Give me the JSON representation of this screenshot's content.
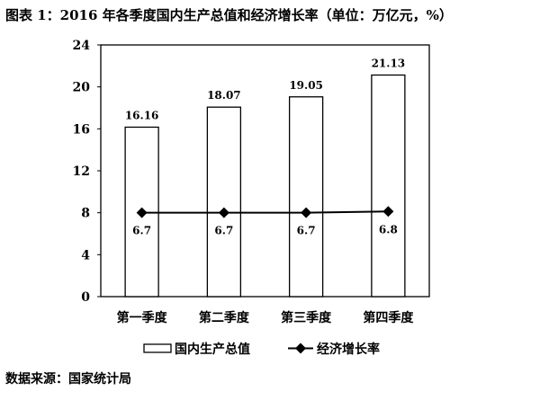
{
  "title": "图表 1：2016 年各季度国内生产总值和经济增长率（单位：万亿元，%）",
  "source": "数据来源：国家统计局",
  "chart_data": {
    "type": "bar",
    "categories": [
      "第一季度",
      "第二季度",
      "第三季度",
      "第四季度"
    ],
    "series": [
      {
        "name": "国内生产总值",
        "type": "bar",
        "values": [
          16.16,
          18.07,
          19.05,
          21.13
        ],
        "color": "#ffffff",
        "stroke": "#000000"
      },
      {
        "name": "经济增长率",
        "type": "line",
        "marker": "diamond",
        "axis": "secondary-hidden",
        "values": [
          6.7,
          6.7,
          6.7,
          6.8
        ],
        "color": "#000000"
      }
    ],
    "ylim": [
      0,
      24
    ],
    "yticks": [
      0,
      4,
      8,
      12,
      16,
      20,
      24
    ],
    "grid": false,
    "legend": "bottom"
  }
}
